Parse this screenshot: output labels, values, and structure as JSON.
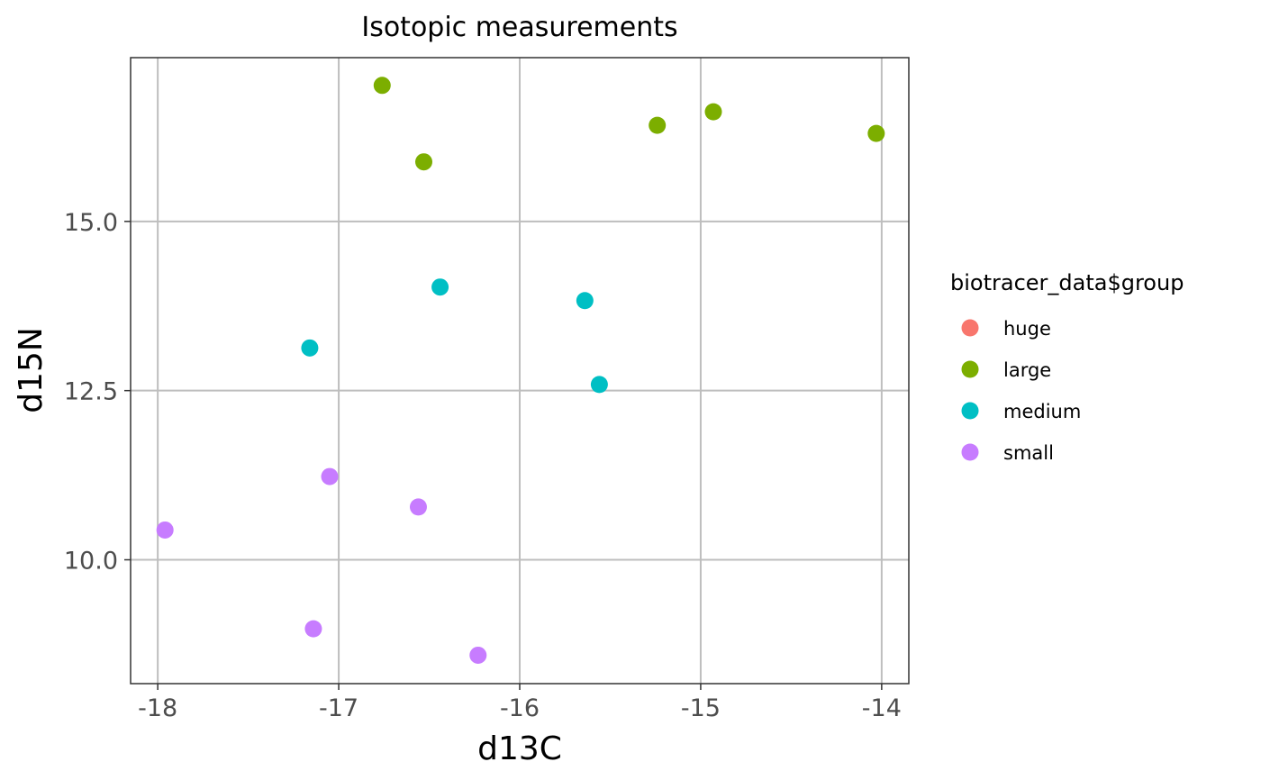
{
  "chart_data": {
    "type": "scatter",
    "title": "Isotopic measurements",
    "xlabel": "d13C",
    "ylabel": "d15N",
    "xlim": [
      -18.15,
      -13.85
    ],
    "ylim": [
      8.17,
      17.42
    ],
    "x_ticks": [
      -18,
      -17,
      -16,
      -15,
      -14
    ],
    "x_tick_labels": [
      "-18",
      "-17",
      "-16",
      "-15",
      "-14"
    ],
    "y_ticks": [
      10,
      12.5,
      15
    ],
    "y_tick_labels": [
      "10.0",
      "12.5",
      "15.0"
    ],
    "grid": true,
    "legend": {
      "title": "biotracer_data$group",
      "placement": "right"
    },
    "series": [
      {
        "name": "huge",
        "color": "#F8766D",
        "points": []
      },
      {
        "name": "large",
        "color": "#7CAE00",
        "points": [
          {
            "x": -16.76,
            "y": 17.01
          },
          {
            "x": -16.53,
            "y": 15.88
          },
          {
            "x": -15.24,
            "y": 16.42
          },
          {
            "x": -14.93,
            "y": 16.62
          },
          {
            "x": -14.03,
            "y": 16.3
          }
        ]
      },
      {
        "name": "medium",
        "color": "#00BFC4",
        "points": [
          {
            "x": -16.44,
            "y": 14.03
          },
          {
            "x": -15.64,
            "y": 13.83
          },
          {
            "x": -17.16,
            "y": 13.13
          },
          {
            "x": -15.56,
            "y": 12.59
          }
        ]
      },
      {
        "name": "small",
        "color": "#C77CFF",
        "points": [
          {
            "x": -17.05,
            "y": 11.23
          },
          {
            "x": -16.56,
            "y": 10.78
          },
          {
            "x": -17.96,
            "y": 10.44
          },
          {
            "x": -17.14,
            "y": 8.98
          },
          {
            "x": -16.23,
            "y": 8.59
          }
        ]
      }
    ]
  }
}
